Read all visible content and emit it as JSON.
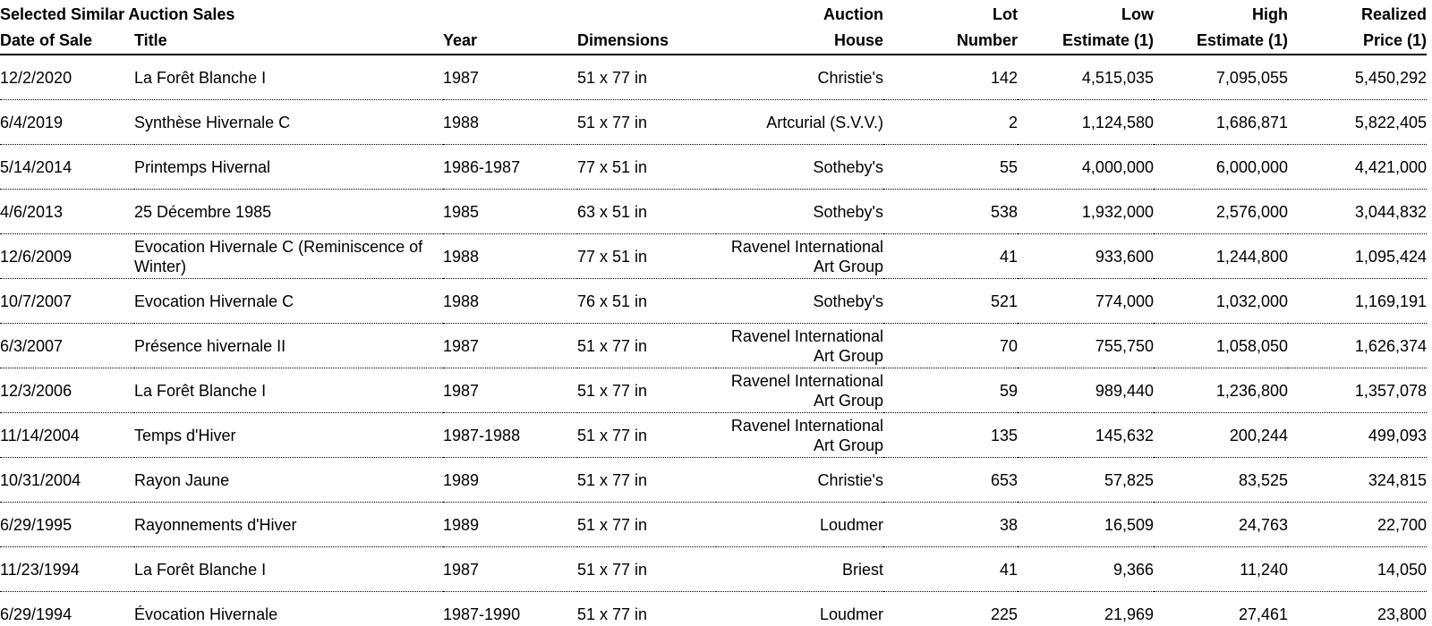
{
  "table": {
    "title": "Selected Similar Auction Sales",
    "columns": [
      {
        "key": "date-of-sale",
        "label": "Date of Sale"
      },
      {
        "key": "title",
        "label": "Title"
      },
      {
        "key": "year",
        "label": "Year"
      },
      {
        "key": "dimensions",
        "label": "Dimensions"
      },
      {
        "key": "auction-house",
        "label": "Auction House",
        "line1": "Auction",
        "line2": "House"
      },
      {
        "key": "lot-number",
        "label": "Lot Number",
        "line1": "Lot",
        "line2": "Number"
      },
      {
        "key": "low-estimate",
        "label": "Low Estimate (1)",
        "line1": "Low",
        "line2": "Estimate (1)"
      },
      {
        "key": "high-estimate",
        "label": "High Estimate (1)",
        "line1": "High",
        "line2": "Estimate (1)"
      },
      {
        "key": "realized-price",
        "label": "Realized Price (1)",
        "line1": "Realized",
        "line2": "Price (1)"
      }
    ],
    "rows": [
      [
        "12/2/2020",
        "La Forêt Blanche I",
        "1987",
        "51 x 77 in",
        "Christie's",
        "142",
        "4,515,035",
        "7,095,055",
        "5,450,292"
      ],
      [
        "6/4/2019",
        "Synthèse Hivernale C",
        "1988",
        "51 x 77 in",
        "Artcurial (S.V.V.)",
        "2",
        "1,124,580",
        "1,686,871",
        "5,822,405"
      ],
      [
        "5/14/2014",
        "Printemps Hivernal",
        "1986-1987",
        "77 x 51 in",
        "Sotheby's",
        "55",
        "4,000,000",
        "6,000,000",
        "4,421,000"
      ],
      [
        "4/6/2013",
        "25 Décembre 1985",
        "1985",
        "63 x 51 in",
        "Sotheby's",
        "538",
        "1,932,000",
        "2,576,000",
        "3,044,832"
      ],
      [
        "12/6/2009",
        "Evocation Hivernale C (Reminiscence of Winter)",
        "1988",
        "77 x 51 in",
        "Ravenel International Art Group",
        "41",
        "933,600",
        "1,244,800",
        "1,095,424"
      ],
      [
        "10/7/2007",
        "Evocation Hivernale C",
        "1988",
        "76 x 51 in",
        "Sotheby's",
        "521",
        "774,000",
        "1,032,000",
        "1,169,191"
      ],
      [
        "6/3/2007",
        "Présence hivernale II",
        "1987",
        "51 x 77 in",
        "Ravenel International Art Group",
        "70",
        "755,750",
        "1,058,050",
        "1,626,374"
      ],
      [
        "12/3/2006",
        "La Forêt Blanche I",
        "1987",
        "51 x 77 in",
        "Ravenel International Art Group",
        "59",
        "989,440",
        "1,236,800",
        "1,357,078"
      ],
      [
        "11/14/2004",
        "Temps d'Hiver",
        "1987-1988",
        "51 x 77 in",
        "Ravenel International Art Group",
        "135",
        "145,632",
        "200,244",
        "499,093"
      ],
      [
        "10/31/2004",
        "Rayon Jaune",
        "1989",
        "51 x 77 in",
        "Christie's",
        "653",
        "57,825",
        "83,525",
        "324,815"
      ],
      [
        "6/29/1995",
        "Rayonnements d'Hiver",
        "1989",
        "51 x 77 in",
        "Loudmer",
        "38",
        "16,509",
        "24,763",
        "22,700"
      ],
      [
        "11/23/1994",
        "La Forêt Blanche I",
        "1987",
        "51 x 77 in",
        "Briest",
        "41",
        "9,366",
        "11,240",
        "14,050"
      ],
      [
        "6/29/1994",
        "Évocation Hivernale",
        "1987-1990",
        "51 x 77 in",
        "Loudmer",
        "225",
        "21,969",
        "27,461",
        "23,800"
      ]
    ],
    "colors": {
      "text": "#000000",
      "background": "#ffffff",
      "rule": "#000000"
    }
  }
}
